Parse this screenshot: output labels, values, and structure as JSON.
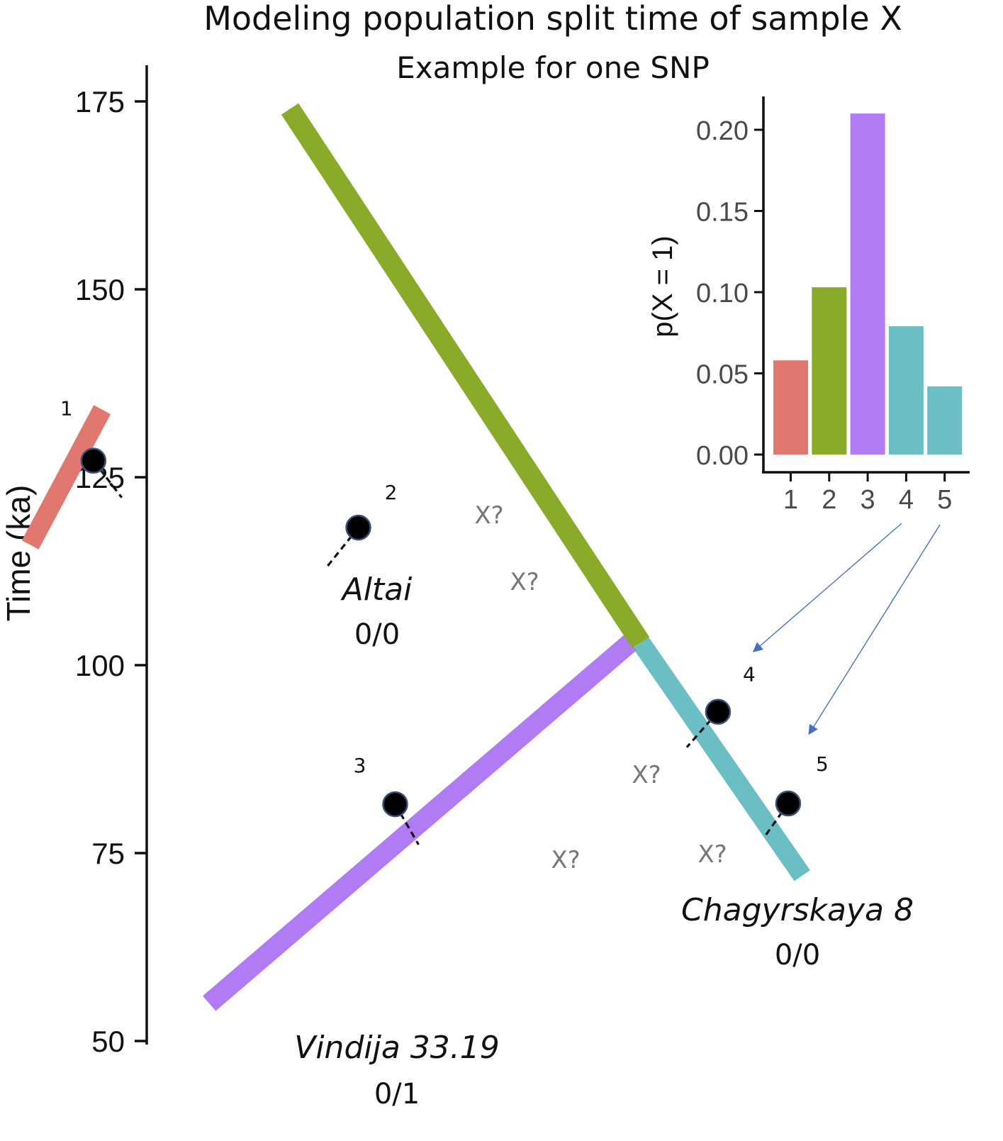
{
  "title": "Modeling population split time of sample X",
  "subtitle": "Example for one SNP",
  "time_axis": {
    "label": "Time (ka)",
    "range": [
      50,
      180
    ],
    "ticks": [
      50,
      75,
      100,
      125,
      150,
      175
    ]
  },
  "tree": {
    "root_time": 174,
    "branches": [
      {
        "id": "main-stem",
        "from": [
          0,
          174
        ],
        "to": [
          1,
          103
        ],
        "color": "#8aaa2a"
      },
      {
        "id": "altai-branch",
        "from": [
          -0.535,
          134
        ],
        "to": [
          -0.74,
          116
        ],
        "color": "#e07870"
      },
      {
        "id": "chagyrskaya-branch",
        "from": [
          1,
          103
        ],
        "to": [
          1.46,
          72
        ],
        "color": "#6bbec3"
      },
      {
        "id": "vindija-branch",
        "from": [
          0.97,
          103
        ],
        "to": [
          -0.23,
          55
        ],
        "color": "#b07bf5"
      }
    ],
    "nodes": [
      {
        "num": "1",
        "pos": [
          -0.56,
          127.2
        ],
        "xq": "X?"
      },
      {
        "num": "2",
        "pos": [
          0.195,
          118.3
        ],
        "xq": "X?"
      },
      {
        "num": "3",
        "pos": [
          0.3,
          81.5
        ],
        "xq": "X?"
      },
      {
        "num": "4",
        "pos": [
          1.22,
          93.8
        ],
        "xq": "X?"
      },
      {
        "num": "5",
        "pos": [
          1.42,
          81.6
        ],
        "xq": "X?"
      }
    ],
    "samples": [
      {
        "name": "Altai",
        "genotype": "0/0"
      },
      {
        "name": "Vindija 33.19",
        "genotype": "0/1"
      },
      {
        "name": "Chagyrskaya 8",
        "genotype": "0/0"
      }
    ]
  },
  "chart_data": {
    "type": "bar",
    "categories": [
      "1",
      "2",
      "3",
      "4",
      "5"
    ],
    "values": [
      0.058,
      0.103,
      0.21,
      0.079,
      0.042
    ],
    "colors": [
      "#e07870",
      "#8aaa2a",
      "#b07bf5",
      "#6bbec3",
      "#6bbec3"
    ],
    "xlabel": "",
    "ylabel": "p(X = 1)",
    "ylim": [
      0,
      0.22
    ],
    "yticks": [
      "0.00",
      "0.05",
      "0.10",
      "0.15",
      "0.20"
    ],
    "grid": false
  }
}
